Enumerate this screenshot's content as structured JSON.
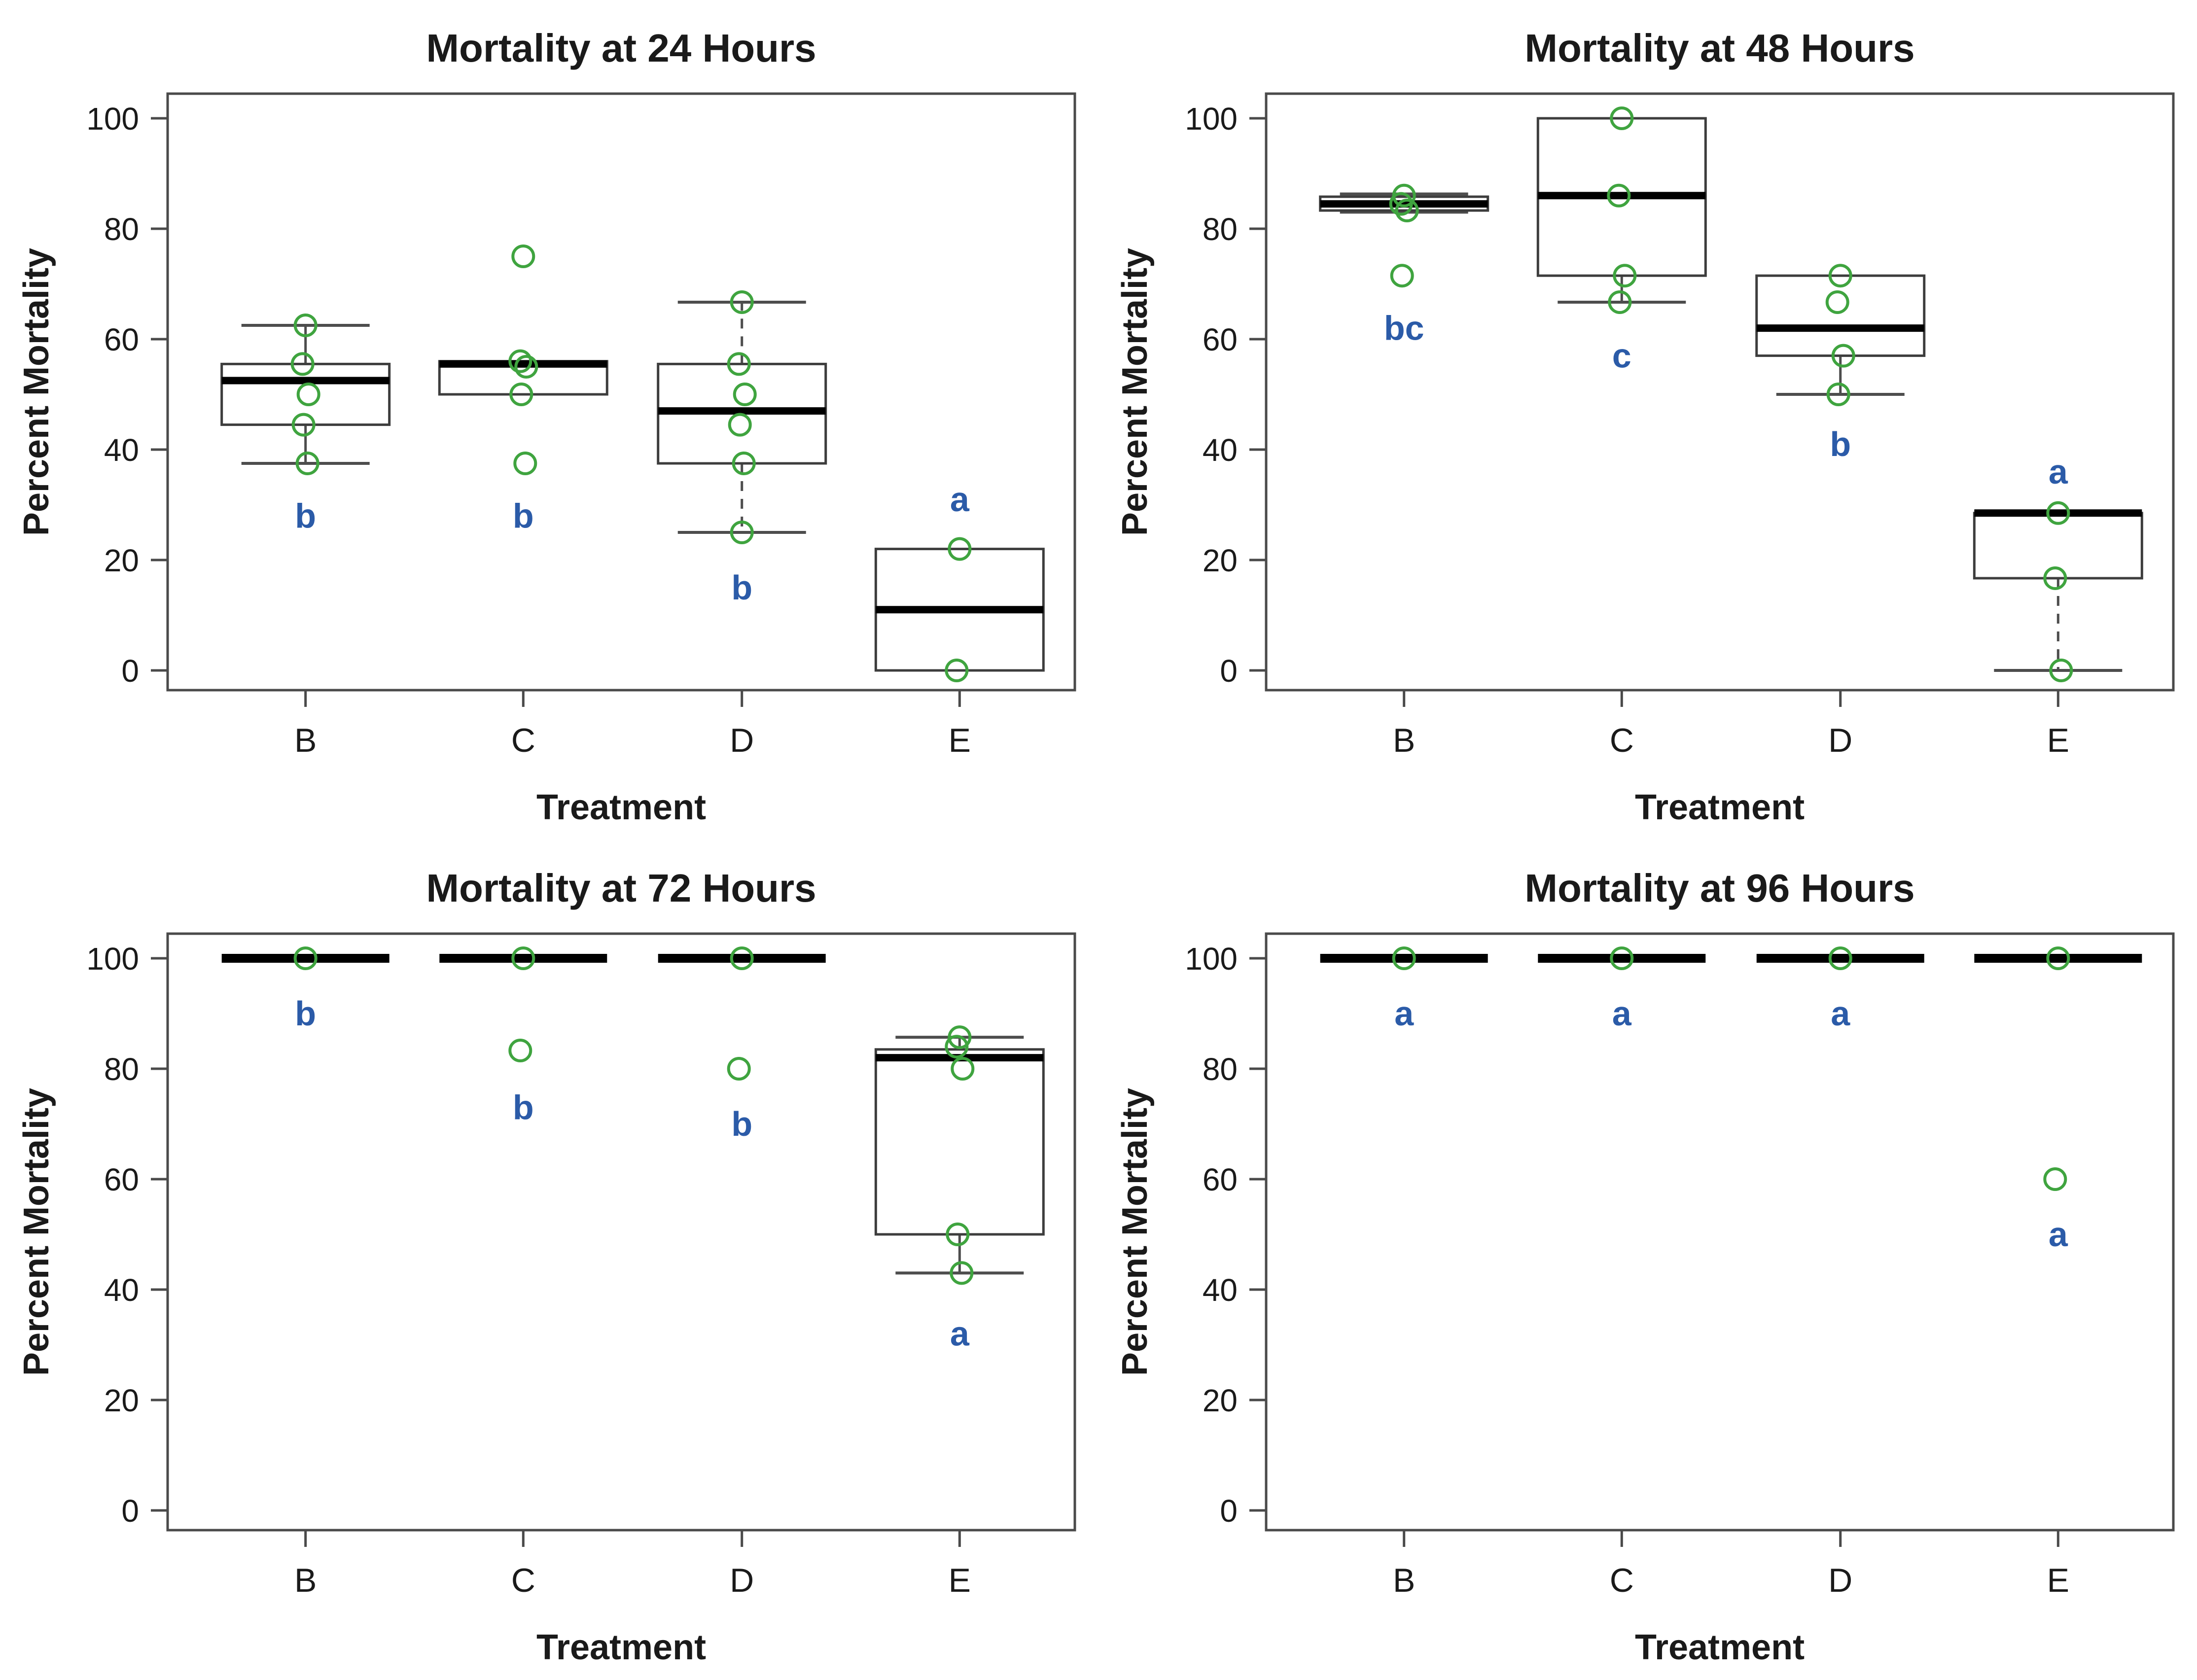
{
  "page": {
    "background": "#ffffff"
  },
  "colors": {
    "point_green": "#3fa43f",
    "sig_blue": "#2b5ba8",
    "box_stroke": "#3d3d3d",
    "median_black": "#000000",
    "whisker_gray": "#4d4d4d",
    "axis_color": "#4a4a4a",
    "text_color": "#1a1a1a"
  },
  "chart_data": [
    {
      "id": "mortality-24h",
      "type": "boxplot",
      "title": "Mortality at 24 Hours",
      "xlabel": "Treatment",
      "ylabel": "Percent Mortality",
      "ylim": [
        0,
        100
      ],
      "yticks": [
        0,
        20,
        40,
        60,
        80,
        100
      ],
      "categories": [
        "B",
        "C",
        "D",
        "E"
      ],
      "legend": "none",
      "grid": false,
      "groups": [
        {
          "category": "B",
          "q1": 44.5,
          "median": 52.5,
          "q3": 55.5,
          "whisker_low": 37.5,
          "whisker_high": 62.5,
          "whisker_low_dashed": false,
          "whisker_high_dashed": false,
          "collapsed": false,
          "points": [
            62.5,
            55.5,
            50,
            44.5,
            37.5
          ],
          "letter": "b",
          "letter_y": 28
        },
        {
          "category": "C",
          "q1": 50,
          "median": 55.5,
          "q3": 56,
          "whisker_low": null,
          "whisker_high": null,
          "whisker_low_dashed": false,
          "whisker_high_dashed": false,
          "collapsed": false,
          "points": [
            75,
            56,
            55,
            50,
            37.5
          ],
          "letter": "b",
          "letter_y": 28
        },
        {
          "category": "D",
          "q1": 37.5,
          "median": 47,
          "q3": 55.5,
          "whisker_low": 25,
          "whisker_high": 66.7,
          "whisker_low_dashed": true,
          "whisker_high_dashed": true,
          "collapsed": false,
          "points": [
            66.7,
            55.5,
            50,
            44.5,
            37.5,
            25
          ],
          "letter": "b",
          "letter_y": 15
        },
        {
          "category": "E",
          "q1": 0,
          "median": 11,
          "q3": 22,
          "whisker_low": null,
          "whisker_high": null,
          "whisker_low_dashed": false,
          "whisker_high_dashed": false,
          "collapsed": false,
          "points": [
            22,
            0
          ],
          "letter": "a",
          "letter_y": 31
        }
      ]
    },
    {
      "id": "mortality-48h",
      "type": "boxplot",
      "title": "Mortality at 48 Hours",
      "xlabel": "Treatment",
      "ylabel": "Percent Mortality",
      "ylim": [
        0,
        100
      ],
      "yticks": [
        0,
        20,
        40,
        60,
        80,
        100
      ],
      "categories": [
        "B",
        "C",
        "D",
        "E"
      ],
      "legend": "none",
      "grid": false,
      "groups": [
        {
          "category": "B",
          "q1": 83.3,
          "median": 84.5,
          "q3": 85.8,
          "whisker_low": 83,
          "whisker_high": 86.3,
          "whisker_low_dashed": false,
          "whisker_high_dashed": false,
          "collapsed": false,
          "points": [
            86,
            84.5,
            83.3,
            71.5
          ],
          "letter": "bc",
          "letter_y": 62
        },
        {
          "category": "C",
          "q1": 71.5,
          "median": 86,
          "q3": 100,
          "whisker_low": 66.7,
          "whisker_high": null,
          "whisker_low_dashed": false,
          "whisker_high_dashed": false,
          "collapsed": false,
          "points": [
            100,
            86,
            71.5,
            66.7
          ],
          "letter": "c",
          "letter_y": 57
        },
        {
          "category": "D",
          "q1": 57,
          "median": 62,
          "q3": 71.5,
          "whisker_low": 50,
          "whisker_high": null,
          "whisker_low_dashed": false,
          "whisker_high_dashed": false,
          "collapsed": false,
          "points": [
            71.5,
            66.7,
            57,
            50
          ],
          "letter": "b",
          "letter_y": 41
        },
        {
          "category": "E",
          "q1": 16.7,
          "median": 28.5,
          "q3": 28.5,
          "whisker_low": 0,
          "whisker_high": null,
          "whisker_low_dashed": true,
          "whisker_high_dashed": false,
          "collapsed": false,
          "points": [
            28.5,
            16.7,
            0
          ],
          "letter": "a",
          "letter_y": 36
        }
      ]
    },
    {
      "id": "mortality-72h",
      "type": "boxplot",
      "title": "Mortality at 72 Hours",
      "xlabel": "Treatment",
      "ylabel": "Percent Mortality",
      "ylim": [
        0,
        100
      ],
      "yticks": [
        0,
        20,
        40,
        60,
        80,
        100
      ],
      "categories": [
        "B",
        "C",
        "D",
        "E"
      ],
      "legend": "none",
      "grid": false,
      "groups": [
        {
          "category": "B",
          "q1": 100,
          "median": 100,
          "q3": 100,
          "whisker_low": null,
          "whisker_high": null,
          "whisker_low_dashed": false,
          "whisker_high_dashed": false,
          "collapsed": true,
          "points": [
            100
          ],
          "letter": "b",
          "letter_y": 90
        },
        {
          "category": "C",
          "q1": 100,
          "median": 100,
          "q3": 100,
          "whisker_low": null,
          "whisker_high": null,
          "whisker_low_dashed": false,
          "whisker_high_dashed": false,
          "collapsed": true,
          "points": [
            100,
            83.3
          ],
          "letter": "b",
          "letter_y": 73
        },
        {
          "category": "D",
          "q1": 100,
          "median": 100,
          "q3": 100,
          "whisker_low": null,
          "whisker_high": null,
          "whisker_low_dashed": false,
          "whisker_high_dashed": false,
          "collapsed": true,
          "points": [
            100,
            80
          ],
          "letter": "b",
          "letter_y": 70
        },
        {
          "category": "E",
          "q1": 50,
          "median": 82,
          "q3": 83.5,
          "whisker_low": 43,
          "whisker_high": 85.7,
          "whisker_low_dashed": false,
          "whisker_high_dashed": false,
          "collapsed": false,
          "points": [
            85.7,
            84,
            80,
            50,
            43
          ],
          "letter": "a",
          "letter_y": 32
        }
      ]
    },
    {
      "id": "mortality-96h",
      "type": "boxplot",
      "title": "Mortality at 96 Hours",
      "xlabel": "Treatment",
      "ylabel": "Percent Mortality",
      "ylim": [
        0,
        100
      ],
      "yticks": [
        0,
        20,
        40,
        60,
        80,
        100
      ],
      "categories": [
        "B",
        "C",
        "D",
        "E"
      ],
      "legend": "none",
      "grid": false,
      "groups": [
        {
          "category": "B",
          "q1": 100,
          "median": 100,
          "q3": 100,
          "whisker_low": null,
          "whisker_high": null,
          "whisker_low_dashed": false,
          "whisker_high_dashed": false,
          "collapsed": true,
          "points": [
            100
          ],
          "letter": "a",
          "letter_y": 90
        },
        {
          "category": "C",
          "q1": 100,
          "median": 100,
          "q3": 100,
          "whisker_low": null,
          "whisker_high": null,
          "whisker_low_dashed": false,
          "whisker_high_dashed": false,
          "collapsed": true,
          "points": [
            100
          ],
          "letter": "a",
          "letter_y": 90
        },
        {
          "category": "D",
          "q1": 100,
          "median": 100,
          "q3": 100,
          "whisker_low": null,
          "whisker_high": null,
          "whisker_low_dashed": false,
          "whisker_high_dashed": false,
          "collapsed": true,
          "points": [
            100
          ],
          "letter": "a",
          "letter_y": 90
        },
        {
          "category": "E",
          "q1": 100,
          "median": 100,
          "q3": 100,
          "whisker_low": null,
          "whisker_high": null,
          "whisker_low_dashed": false,
          "whisker_high_dashed": false,
          "collapsed": true,
          "points": [
            100,
            60
          ],
          "letter": "a",
          "letter_y": 50
        }
      ]
    }
  ]
}
